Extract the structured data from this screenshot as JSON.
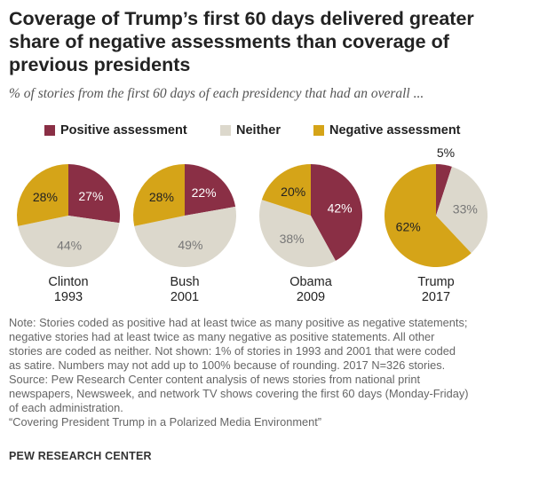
{
  "title_lines": [
    "Coverage of Trump’s first 60 days delivered greater",
    "share of negative assessments than coverage of",
    "previous presidents"
  ],
  "subtitle": "% of stories from the first 60 days of each presidency that had an overall ...",
  "colors": {
    "positive": "#8a2f45",
    "neither": "#dcd8cc",
    "negative": "#d5a418",
    "label_dark": "#222222",
    "label_light": "#ffffff",
    "label_muted": "#777777"
  },
  "chart_data": {
    "type": "pie",
    "legend": [
      {
        "key": "positive",
        "label": "Positive assessment"
      },
      {
        "key": "neither",
        "label": "Neither"
      },
      {
        "key": "negative",
        "label": "Negative assessment"
      }
    ],
    "pies": [
      {
        "name": "Clinton",
        "year": "1993",
        "positive": 27,
        "neither": 44,
        "negative": 28,
        "labels": {
          "positive": "27%",
          "neither": "44%",
          "negative": "28%"
        }
      },
      {
        "name": "Bush",
        "year": "2001",
        "positive": 22,
        "neither": 49,
        "negative": 28,
        "labels": {
          "positive": "22%",
          "neither": "49%",
          "negative": "28%"
        }
      },
      {
        "name": "Obama",
        "year": "2009",
        "positive": 42,
        "neither": 38,
        "negative": 20,
        "labels": {
          "positive": "42%",
          "neither": "38%",
          "negative": "20%"
        }
      },
      {
        "name": "Trump",
        "year": "2017",
        "positive": 5,
        "neither": 33,
        "negative": 62,
        "labels": {
          "positive": "5%",
          "neither": "33%",
          "negative": "62%"
        }
      }
    ]
  },
  "note_lines": [
    "Note: Stories coded as positive had at least twice as many positive as negative statements;",
    "negative stories had at least twice as many negative as positive statements. All other",
    "stories are coded as neither. Not shown: 1% of stories in 1993 and 2001 that were coded",
    "as satire. Numbers may not add up to 100% because of rounding. 2017 N=326 stories.",
    "Source: Pew Research Center content analysis of news stories from national print",
    "newspapers, Newsweek, and network TV shows covering the first 60 days (Monday-Friday)",
    "of each administration.",
    "“Covering President Trump in a Polarized Media Environment”"
  ],
  "brand": "PEW RESEARCH CENTER"
}
